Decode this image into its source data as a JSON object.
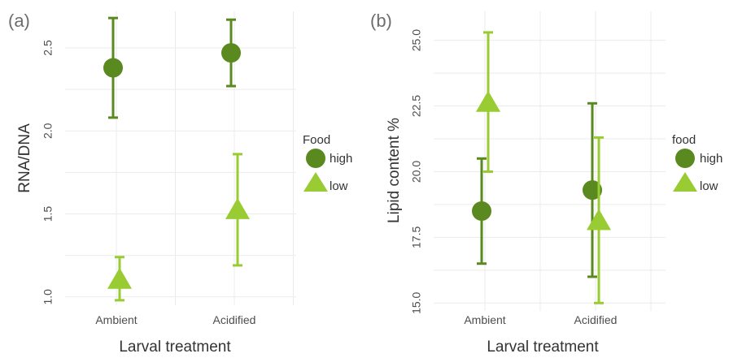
{
  "chart_data": [
    {
      "type": "scatter",
      "panel_label": "(a)",
      "xlabel": "Larval treatment",
      "ylabel": "RNA/DNA",
      "categories": [
        "Ambient",
        "Acidified"
      ],
      "ylim": [
        0.95,
        2.72
      ],
      "yticks": [
        "1.0",
        "1.5",
        "2.0",
        "2.5"
      ],
      "grid": true,
      "legend_title": "Food",
      "legend_position": "right",
      "series": [
        {
          "name": "high",
          "marker": "circle",
          "color": "#5a8a1f",
          "points": [
            {
              "x": "Ambient",
              "y": 2.38,
              "ymin": 2.08,
              "ymax": 2.68
            },
            {
              "x": "Acidified",
              "y": 2.47,
              "ymin": 2.27,
              "ymax": 2.67
            }
          ]
        },
        {
          "name": "low",
          "marker": "triangle",
          "color": "#99cc33",
          "points": [
            {
              "x": "Ambient",
              "y": 1.1,
              "ymin": 0.98,
              "ymax": 1.24
            },
            {
              "x": "Acidified",
              "y": 1.52,
              "ymin": 1.19,
              "ymax": 1.86
            }
          ]
        }
      ]
    },
    {
      "type": "scatter",
      "panel_label": "(b)",
      "xlabel": "Larval treatment",
      "ylabel": "Lipid content %",
      "categories": [
        "Ambient",
        "Acidified"
      ],
      "ylim": [
        14.7,
        26.1
      ],
      "yticks": [
        "15.0",
        "17.5",
        "20.0",
        "22.5",
        "25.0"
      ],
      "grid": true,
      "legend_title": "food",
      "legend_position": "right",
      "series": [
        {
          "name": "high",
          "marker": "circle",
          "color": "#5a8a1f",
          "points": [
            {
              "x": "Ambient",
              "y": 18.5,
              "ymin": 16.5,
              "ymax": 20.5
            },
            {
              "x": "Acidified",
              "y": 19.3,
              "ymin": 16.0,
              "ymax": 22.6
            }
          ]
        },
        {
          "name": "low",
          "marker": "triangle",
          "color": "#99cc33",
          "points": [
            {
              "x": "Ambient",
              "y": 22.6,
              "ymin": 20.0,
              "ymax": 25.3
            },
            {
              "x": "Acidified",
              "y": 18.1,
              "ymin": 15.0,
              "ymax": 21.3
            }
          ]
        }
      ]
    }
  ]
}
